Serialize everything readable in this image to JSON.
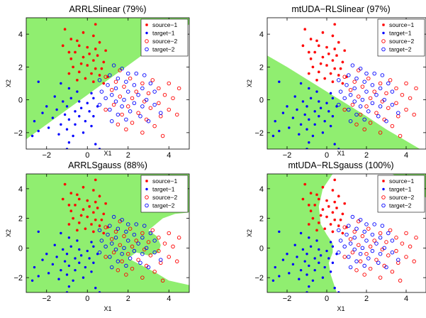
{
  "chart_data": [
    {
      "type": "scatter",
      "title": "ARRLSlinear (79%)",
      "xlabel": "X1",
      "ylabel": "X2",
      "xlim": [
        -3,
        5
      ],
      "ylim": [
        -3,
        5
      ],
      "xticks": [
        -2,
        0,
        2,
        4
      ],
      "yticks": [
        -2,
        0,
        2,
        4
      ],
      "region": "green area above an oblique boundary running from the lower-left corner to the upper-right",
      "legend_position": "top-right",
      "legend": [
        "source−1",
        "target−1",
        "source−2",
        "target−2"
      ]
    },
    {
      "type": "scatter",
      "title": "mtUDA−RLSlinear (97%)",
      "xlabel": "X1",
      "ylabel": "X2",
      "xlim": [
        -3,
        5
      ],
      "ylim": [
        -3,
        5
      ],
      "xticks": [
        -2,
        0,
        2,
        4
      ],
      "yticks": [
        -2,
        0,
        2,
        4
      ],
      "region": "green area below a line falling from the left edge to the bottom",
      "legend_position": "top-right",
      "legend": [
        "source−1",
        "target−1",
        "source−2",
        "target−2"
      ]
    },
    {
      "type": "scatter",
      "title": "ARRLSgauss (88%)",
      "xlabel": "X1",
      "ylabel": "X2",
      "xlim": [
        -3,
        5
      ],
      "ylim": [
        -3,
        5
      ],
      "xticks": [
        -2,
        0,
        2,
        4
      ],
      "yticks": [
        -2,
        0,
        2,
        4
      ],
      "region": "green area almost everywhere except an S-shaped white area on the right",
      "legend_position": "top-right",
      "legend": [
        "source−1",
        "target−1",
        "source−2",
        "target−2"
      ]
    },
    {
      "type": "scatter",
      "title": "mtUDA−RLSgauss (100%)",
      "xlabel": "X1",
      "ylabel": "X2",
      "xlim": [
        -3,
        5
      ],
      "ylim": [
        -3,
        5
      ],
      "xticks": [
        -2,
        0,
        2,
        4
      ],
      "yticks": [
        -2,
        0,
        2,
        4
      ],
      "region": "green area on the left side with a curved boundary, plus the top-right corner",
      "legend_position": "top-right",
      "legend": [
        "source−1",
        "target−1",
        "source−2",
        "target−2"
      ]
    }
  ],
  "colors": {
    "green_region": "#90ee70",
    "source_1": "#ff0000",
    "target_1": "#0000ff",
    "source_2": "#ff0000",
    "target_2": "#0000ff"
  },
  "points": {
    "source_1": [
      [
        0.5,
        5.1
      ],
      [
        0.4,
        4.6
      ],
      [
        -1.1,
        4.3
      ],
      [
        -0.2,
        4.1
      ],
      [
        0.3,
        3.9
      ],
      [
        -0.8,
        3.7
      ],
      [
        -0.5,
        3.6
      ],
      [
        0.6,
        3.5
      ],
      [
        -1.2,
        3.3
      ],
      [
        -0.4,
        3.3
      ],
      [
        0.0,
        3.2
      ],
      [
        0.4,
        3.1
      ],
      [
        0.9,
        3.0
      ],
      [
        -0.9,
        2.9
      ],
      [
        -0.6,
        2.9
      ],
      [
        0.1,
        2.8
      ],
      [
        0.5,
        2.7
      ],
      [
        -0.2,
        2.6
      ],
      [
        -0.8,
        2.5
      ],
      [
        0.3,
        2.4
      ],
      [
        0.8,
        2.3
      ],
      [
        -0.3,
        2.2
      ],
      [
        0.0,
        2.1
      ],
      [
        -0.7,
        2.0
      ],
      [
        0.4,
        1.9
      ],
      [
        0.7,
        1.9
      ],
      [
        -0.4,
        1.7
      ],
      [
        0.2,
        1.6
      ],
      [
        -0.9,
        1.6
      ],
      [
        0.6,
        1.5
      ],
      [
        1.0,
        1.4
      ],
      [
        -0.1,
        1.3
      ],
      [
        -0.5,
        1.2
      ],
      [
        0.3,
        1.1
      ],
      [
        0.8,
        1.0
      ]
    ],
    "target_1": [
      [
        -2.4,
        1.1
      ],
      [
        -1.3,
        1.0
      ],
      [
        -0.9,
        0.7
      ],
      [
        -0.5,
        0.5
      ],
      [
        0.2,
        0.4
      ],
      [
        -1.6,
        0.2
      ],
      [
        -0.8,
        0.1
      ],
      [
        0.3,
        0.1
      ],
      [
        -1.2,
        -0.1
      ],
      [
        -0.4,
        -0.1
      ],
      [
        0.0,
        -0.2
      ],
      [
        -2.0,
        -0.4
      ],
      [
        -1.0,
        -0.4
      ],
      [
        -0.3,
        -0.5
      ],
      [
        0.5,
        -0.4
      ],
      [
        -1.5,
        -0.6
      ],
      [
        -0.6,
        -0.7
      ],
      [
        0.1,
        -0.7
      ],
      [
        -2.2,
        -0.8
      ],
      [
        -1.1,
        -0.9
      ],
      [
        -0.4,
        -1.0
      ],
      [
        0.3,
        -1.0
      ],
      [
        -1.7,
        -1.1
      ],
      [
        -0.9,
        -1.2
      ],
      [
        -0.1,
        -1.3
      ],
      [
        -2.6,
        -1.3
      ],
      [
        -1.3,
        -1.5
      ],
      [
        -0.6,
        -1.5
      ],
      [
        0.2,
        -1.6
      ],
      [
        -1.9,
        -1.7
      ],
      [
        -1.0,
        -1.8
      ],
      [
        -2.4,
        -1.9
      ],
      [
        -0.2,
        -2.0
      ],
      [
        -1.4,
        -2.1
      ],
      [
        -0.7,
        -2.2
      ],
      [
        -2.7,
        -2.2
      ],
      [
        -0.9,
        -2.6
      ],
      [
        0.4,
        -2.7
      ],
      [
        -1.0,
        -3.0
      ],
      [
        0.6,
        -3.0
      ]
    ],
    "source_2": [
      [
        1.6,
        1.8
      ],
      [
        0.9,
        1.4
      ],
      [
        2.1,
        1.3
      ],
      [
        3.2,
        1.2
      ],
      [
        1.4,
        1.1
      ],
      [
        2.7,
        1.0
      ],
      [
        4.0,
        1.0
      ],
      [
        1.8,
        0.8
      ],
      [
        3.5,
        0.7
      ],
      [
        4.5,
        0.7
      ],
      [
        1.2,
        0.6
      ],
      [
        2.4,
        0.5
      ],
      [
        3.0,
        0.4
      ],
      [
        3.8,
        0.3
      ],
      [
        1.6,
        0.2
      ],
      [
        2.2,
        0.1
      ],
      [
        4.2,
        0.1
      ],
      [
        2.8,
        -0.1
      ],
      [
        3.5,
        -0.2
      ],
      [
        1.3,
        -0.3
      ],
      [
        2.0,
        -0.4
      ],
      [
        3.1,
        -0.5
      ],
      [
        4.0,
        -0.6
      ],
      [
        2.5,
        -0.8
      ],
      [
        1.7,
        -0.9
      ],
      [
        3.6,
        -1.0
      ],
      [
        2.9,
        -1.2
      ],
      [
        2.2,
        -1.4
      ],
      [
        3.3,
        -1.6
      ],
      [
        1.9,
        -1.8
      ],
      [
        2.7,
        -2.0
      ],
      [
        3.7,
        -2.2
      ],
      [
        1.5,
        -1.5
      ],
      [
        4.4,
        -0.9
      ],
      [
        0.9,
        -0.6
      ]
    ],
    "target_2": [
      [
        1.3,
        2.1
      ],
      [
        1.7,
        1.9
      ],
      [
        2.0,
        1.6
      ],
      [
        1.1,
        1.5
      ],
      [
        2.4,
        1.6
      ],
      [
        1.5,
        1.3
      ],
      [
        2.8,
        1.5
      ],
      [
        0.6,
        1.2
      ],
      [
        1.9,
        1.1
      ],
      [
        3.1,
        1.0
      ],
      [
        1.0,
        0.9
      ],
      [
        2.3,
        0.9
      ],
      [
        1.4,
        0.7
      ],
      [
        2.7,
        0.7
      ],
      [
        0.7,
        0.5
      ],
      [
        2.0,
        0.5
      ],
      [
        3.3,
        0.5
      ],
      [
        1.2,
        0.3
      ],
      [
        2.5,
        0.3
      ],
      [
        0.9,
        0.1
      ],
      [
        1.8,
        0.0
      ],
      [
        2.9,
        0.0
      ],
      [
        1.4,
        -0.1
      ],
      [
        2.3,
        -0.2
      ],
      [
        0.6,
        -0.3
      ],
      [
        1.7,
        -0.4
      ],
      [
        2.7,
        -0.4
      ],
      [
        3.3,
        -0.3
      ],
      [
        1.1,
        -0.6
      ],
      [
        2.1,
        -0.7
      ],
      [
        1.5,
        -0.9
      ],
      [
        2.6,
        -1.0
      ],
      [
        3.0,
        -1.3
      ],
      [
        1.9,
        -1.2
      ],
      [
        3.6,
        -0.8
      ],
      [
        1.2,
        -1.3
      ]
    ]
  }
}
